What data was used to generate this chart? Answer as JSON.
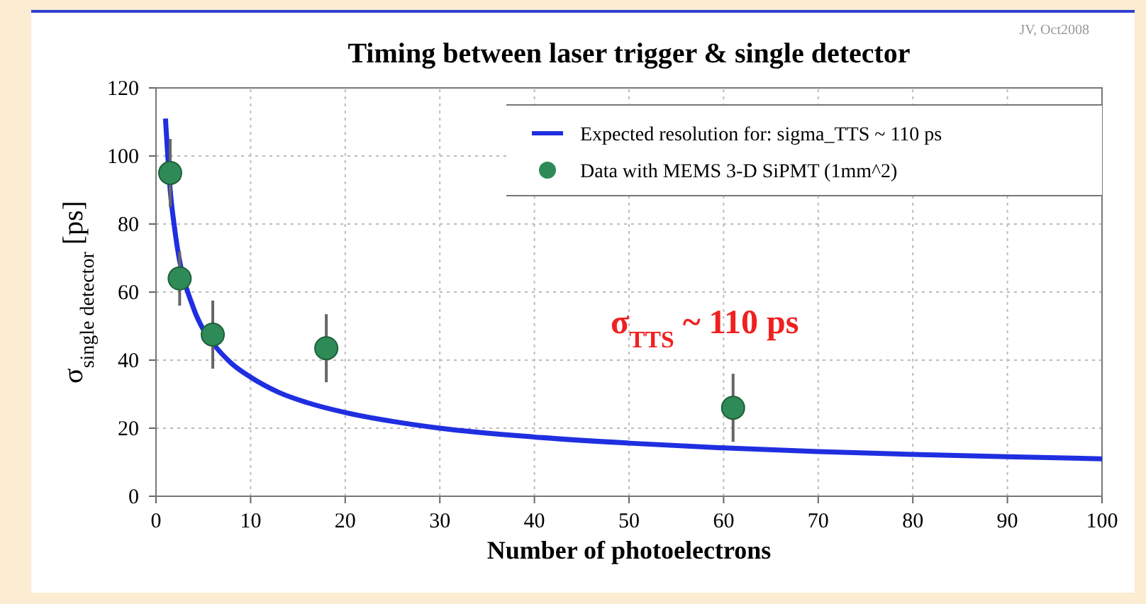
{
  "chart_data": {
    "type": "line",
    "title": "Timing between laser trigger & single detector",
    "xlabel": "Number of photoelectrons",
    "ylabel": "σ$_{single detector}$ [ps]",
    "xlim": [
      0,
      100
    ],
    "xticks": [
      0,
      10,
      20,
      30,
      40,
      50,
      60,
      70,
      80,
      90,
      100
    ],
    "ylim": [
      0,
      120
    ],
    "yticks": [
      0,
      20,
      40,
      60,
      80,
      100,
      120
    ],
    "grid": true,
    "legend": "top right",
    "annotations": [
      "σ$_{TTS}$ ~ 110 ps",
      "JV, Oct2008"
    ],
    "series": [
      {
        "name": "Expected resolution for: sigma_TTS ~ 110 ps",
        "color": "#1f2fe0",
        "marker": "none",
        "x": [
          1,
          1.5,
          2,
          4,
          5,
          6,
          8,
          10,
          13,
          16,
          20,
          25,
          30,
          40,
          50,
          60,
          70,
          80,
          90,
          100
        ],
        "values": [
          111,
          90,
          78,
          55,
          49,
          45,
          39,
          35,
          30.5,
          27.5,
          24.6,
          22,
          20,
          17.4,
          15.6,
          14.2,
          13.1,
          12.3,
          11.6,
          11
        ]
      },
      {
        "name": "Data with MEMS 3-D SiPMT (1mm^2)",
        "type": "scatter",
        "color": "#2e8b57",
        "marker": "circle",
        "x": [
          1.5,
          2.5,
          6,
          18,
          61
        ],
        "values": [
          95,
          64,
          47.5,
          43.5,
          26
        ],
        "errors": [
          10,
          8,
          10,
          10,
          10
        ]
      }
    ]
  }
}
